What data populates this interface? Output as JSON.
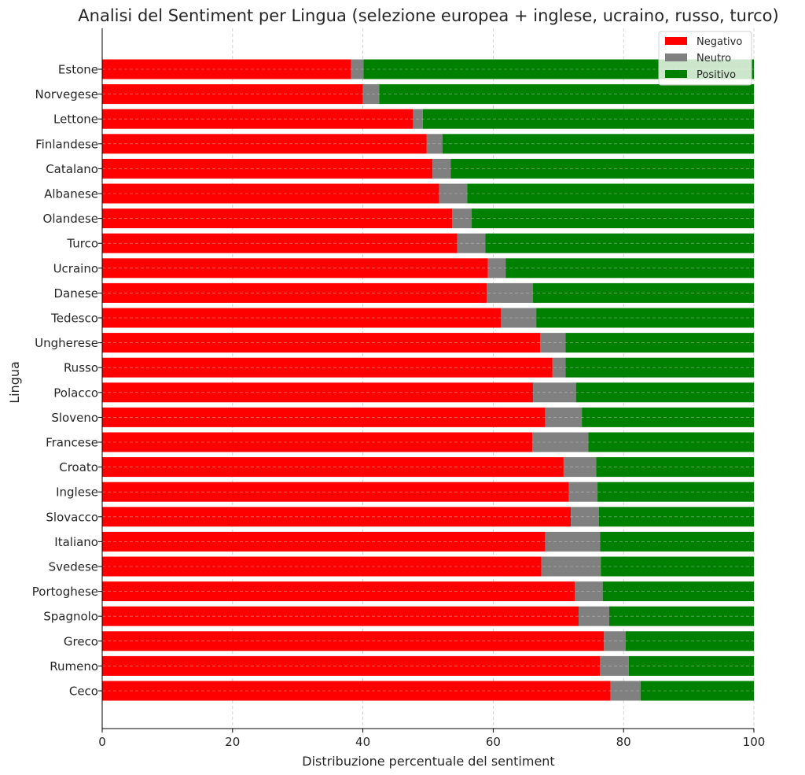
{
  "chart_data": {
    "type": "bar",
    "orientation": "horizontal",
    "stacked": true,
    "title": "Analisi del Sentiment per Lingua (selezione europea + inglese, ucraino, russo, turco)",
    "xlabel": "Distribuzione percentuale del sentiment",
    "ylabel": "Lingua",
    "xlim": [
      0,
      100
    ],
    "xticks": [
      "0",
      "20",
      "40",
      "60",
      "80",
      "100"
    ],
    "grid": true,
    "legend_position": "top-right",
    "categories": [
      "Estone",
      "Norvegese",
      "Lettone",
      "Finlandese",
      "Catalano",
      "Albanese",
      "Olandese",
      "Turco",
      "Ucraino",
      "Danese",
      "Tedesco",
      "Ungherese",
      "Russo",
      "Polacco",
      "Sloveno",
      "Francese",
      "Croato",
      "Inglese",
      "Slovacco",
      "Italiano",
      "Svedese",
      "Portoghese",
      "Spagnolo",
      "Greco",
      "Rumeno",
      "Ceco"
    ],
    "series": [
      {
        "name": "Negativo",
        "color": "#ff0000",
        "values": [
          38.2,
          40.0,
          47.7,
          49.8,
          50.7,
          51.7,
          53.7,
          54.5,
          59.2,
          59.0,
          61.2,
          67.2,
          69.1,
          66.1,
          68.0,
          66.0,
          70.8,
          71.6,
          71.9,
          68.0,
          67.4,
          72.5,
          73.1,
          77.0,
          76.4,
          78.0
        ]
      },
      {
        "name": "Neutro",
        "color": "#808080",
        "values": [
          1.9,
          2.5,
          1.5,
          2.4,
          2.8,
          4.3,
          3.0,
          4.3,
          2.7,
          7.1,
          5.4,
          3.9,
          2.0,
          6.6,
          5.6,
          8.6,
          5.0,
          4.4,
          4.3,
          8.4,
          9.1,
          4.3,
          4.7,
          3.3,
          4.4,
          4.6
        ]
      },
      {
        "name": "Positivo",
        "color": "#008000",
        "values": [
          59.9,
          57.5,
          50.8,
          47.8,
          46.5,
          44.0,
          43.3,
          41.2,
          38.1,
          33.9,
          33.4,
          28.9,
          28.9,
          27.3,
          26.4,
          25.4,
          24.2,
          24.0,
          23.8,
          23.6,
          23.5,
          23.2,
          22.2,
          19.7,
          19.2,
          17.4
        ]
      }
    ]
  }
}
